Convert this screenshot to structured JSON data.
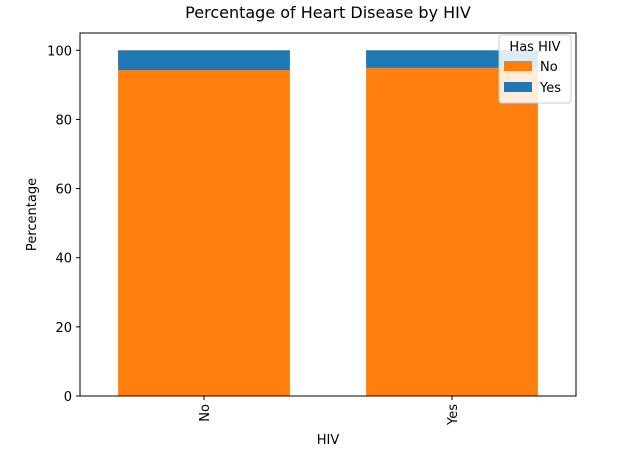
{
  "chart_data": {
    "type": "bar",
    "stacked": true,
    "title": "Percentage of Heart Disease by HIV",
    "xlabel": "HIV",
    "ylabel": "Percentage",
    "categories": [
      "No",
      "Yes"
    ],
    "ylim": [
      0,
      105
    ],
    "yticks": [
      0,
      20,
      40,
      60,
      80,
      100
    ],
    "series": [
      {
        "name": "No",
        "color": "#ff7f0e",
        "values": [
          94.3,
          94.9
        ]
      },
      {
        "name": "Yes",
        "color": "#1f77b4",
        "values": [
          5.7,
          5.1
        ]
      }
    ],
    "legend": {
      "title": "Has HIV",
      "placement": "top-right"
    },
    "grid": false
  }
}
